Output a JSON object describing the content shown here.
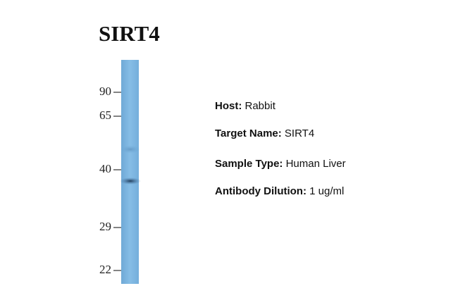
{
  "title": "SIRT4",
  "markers": [
    90,
    65,
    40,
    29,
    22
  ],
  "info": [
    {
      "label": "Host:",
      "value": "Rabbit"
    },
    {
      "label": "Target Name:",
      "value": "SIRT4"
    },
    {
      "label": "Sample Type:",
      "value": "Human Liver"
    },
    {
      "label": "Antibody Dilution:",
      "value": "1 ug/ml"
    }
  ]
}
